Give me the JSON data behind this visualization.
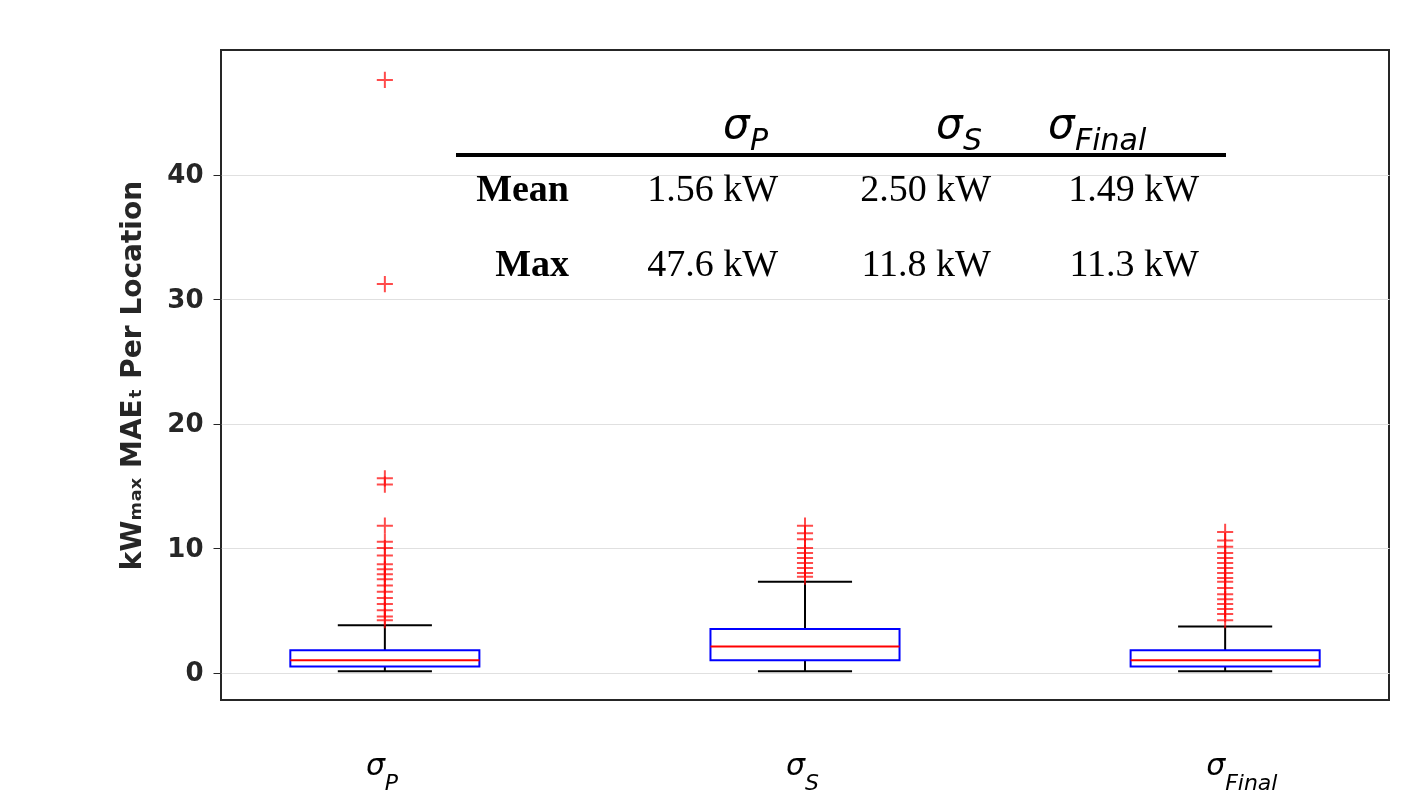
{
  "chart_data": {
    "type": "box",
    "categories": [
      "σ$_{P}$",
      "σ$_{S}$",
      "σ$_{Final}$"
    ],
    "ylabel": "kWₘₐₓ MAEₜ Per Location",
    "ylim": [
      -2.2,
      50
    ],
    "yticks": [
      0,
      10,
      20,
      30,
      40
    ],
    "grid": "y",
    "marker": "cross",
    "series": [
      {
        "color": "#0000ff",
        "boxes": [
          {
            "low": 0.1,
            "q1": 0.5,
            "median": 1.0,
            "q3": 1.8,
            "high": 3.8,
            "outliers": [
              47.6,
              31.2,
              15.6,
              15.1,
              11.8,
              10.5,
              10.0,
              9.4,
              8.7,
              8.3,
              7.9,
              7.5,
              7.0,
              6.5,
              6.0,
              5.5,
              5.0,
              4.5,
              4.2
            ]
          },
          {
            "low": 0.1,
            "q1": 1.0,
            "median": 2.1,
            "q3": 3.5,
            "high": 7.3,
            "outliers": [
              11.8,
              11.2,
              10.7,
              10.0,
              9.6,
              9.2,
              8.8,
              8.4,
              8.0,
              7.7
            ]
          },
          {
            "low": 0.1,
            "q1": 0.5,
            "median": 1.0,
            "q3": 1.8,
            "high": 3.7,
            "outliers": [
              11.3,
              10.6,
              10.1,
              9.6,
              9.2,
              8.8,
              8.4,
              8.0,
              7.6,
              7.3,
              6.8,
              6.3,
              5.9,
              5.5,
              5.1,
              4.7,
              4.2
            ]
          }
        ]
      }
    ],
    "annotations": [
      "σ$_{P}$",
      "σ$_{S}$",
      "σ$_{Final}$",
      "Mean",
      "1.56 kW",
      "2.50 kW",
      "1.49 kW",
      "Max",
      "47.6 kW",
      "11.8 kW",
      "11.3 kW"
    ]
  }
}
